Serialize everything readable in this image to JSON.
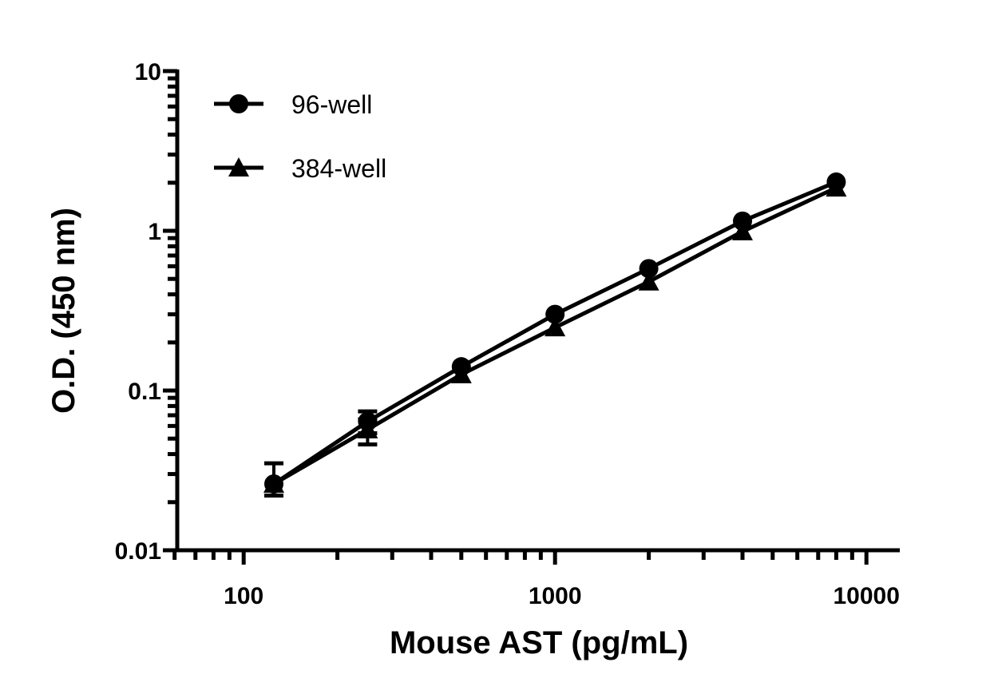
{
  "chart_data": {
    "type": "line",
    "title": "",
    "xlabel": "Mouse AST (pg/mL)",
    "ylabel": "O.D. (450 nm)",
    "xscale": "log",
    "yscale": "log",
    "xlim": [
      56,
      12800
    ],
    "ylim": [
      0.01,
      10
    ],
    "xticks": [
      {
        "value": 100,
        "label": "100"
      },
      {
        "value": 1000,
        "label": "1000"
      },
      {
        "value": 10000,
        "label": "10000"
      }
    ],
    "yticks": [
      {
        "value": 10,
        "label": "10"
      },
      {
        "value": 1,
        "label": "1"
      },
      {
        "value": 0.1,
        "label": "0.1"
      },
      {
        "value": 0.01,
        "label": "0.01"
      }
    ],
    "grid": false,
    "legend_position": "top-left",
    "color": "#000000",
    "x": [
      125,
      250,
      500,
      1000,
      2000,
      4000,
      8000
    ],
    "series": [
      {
        "name": "96-well",
        "marker": "circle",
        "values": [
          0.026,
          0.064,
          0.141,
          0.3,
          0.58,
          1.15,
          2.02
        ],
        "error_low": [
          0.022,
          0.054,
          null,
          null,
          null,
          null,
          null
        ],
        "error_high": [
          0.035,
          0.074,
          null,
          null,
          null,
          null,
          null
        ]
      },
      {
        "name": "384-well",
        "marker": "triangle",
        "values": [
          0.026,
          0.057,
          0.126,
          0.248,
          0.48,
          0.99,
          1.86
        ],
        "error_low": [
          null,
          0.046,
          null,
          null,
          null,
          null,
          null
        ],
        "error_high": [
          null,
          0.066,
          null,
          null,
          null,
          null,
          null
        ]
      }
    ]
  }
}
